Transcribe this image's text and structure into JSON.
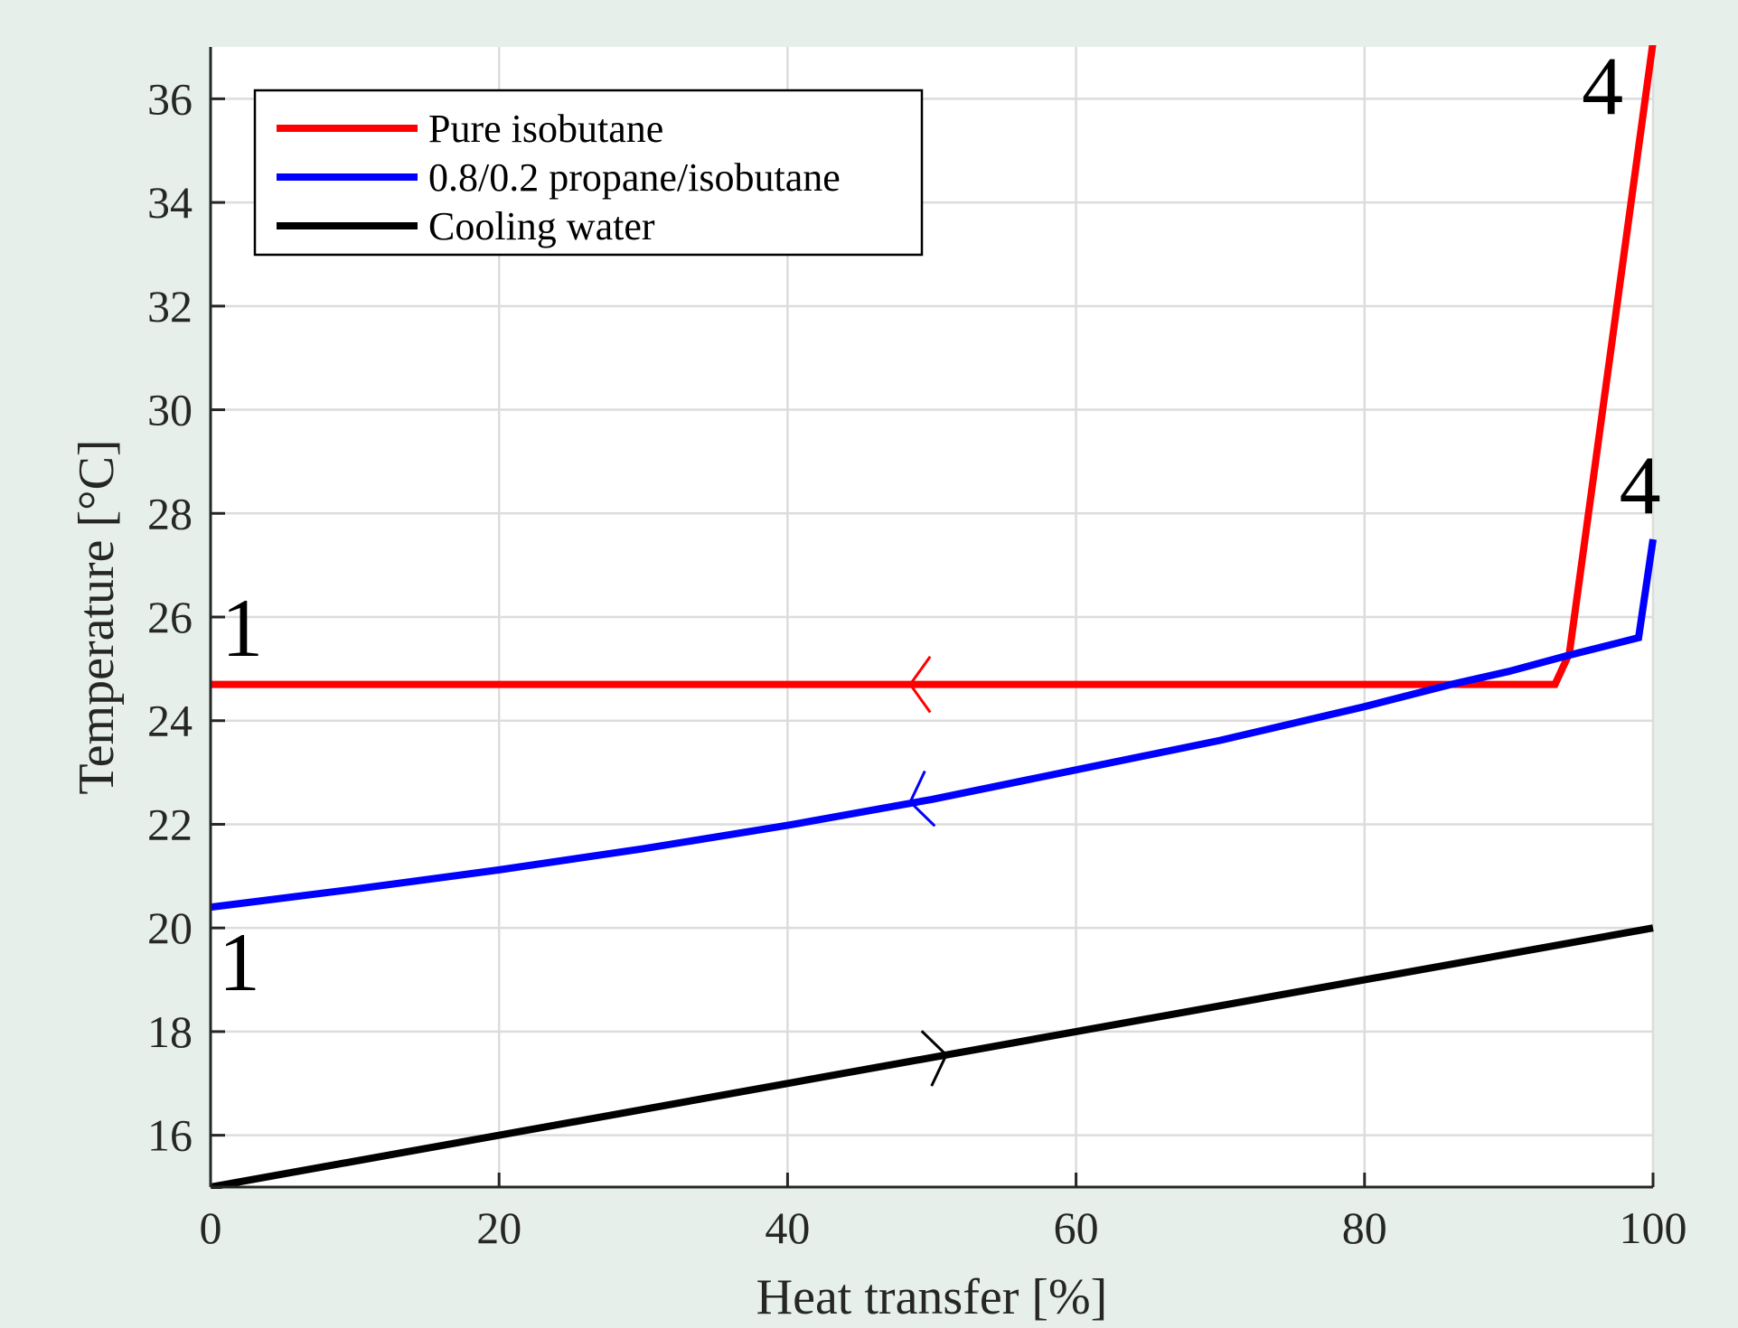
{
  "chart_data": {
    "type": "line",
    "xlabel": "Heat transfer [%]",
    "ylabel": "Temperature [°C]",
    "xlim": [
      0,
      100
    ],
    "ylim": [
      15,
      37
    ],
    "xticks": [
      0,
      20,
      40,
      60,
      80,
      100
    ],
    "yticks": [
      16,
      18,
      20,
      22,
      24,
      26,
      28,
      30,
      32,
      34,
      36
    ],
    "grid": true,
    "legend_position": "top-left",
    "series": [
      {
        "name": "Pure isobutane",
        "color": "#ff0000",
        "x": [
          0,
          93.2,
          94.2,
          100
        ],
        "y": [
          24.7,
          24.7,
          25.3,
          37.1
        ],
        "arrow": {
          "x": 48.5,
          "y": 24.7,
          "direction": "left"
        }
      },
      {
        "name": "0.8/0.2 propane/isobutane",
        "color": "#0000ff",
        "x": [
          0,
          10,
          20,
          30,
          40,
          50,
          60,
          70,
          80,
          86,
          90,
          94,
          99,
          100
        ],
        "y": [
          20.4,
          20.75,
          21.12,
          21.53,
          21.98,
          22.48,
          23.05,
          23.62,
          24.27,
          24.7,
          24.95,
          25.25,
          25.6,
          27.5
        ],
        "arrow": {
          "x": 48.5,
          "y": 22.43,
          "direction": "left"
        }
      },
      {
        "name": "Cooling water",
        "color": "#000000",
        "x": [
          0,
          100
        ],
        "y": [
          15.0,
          20.0
        ],
        "arrow": {
          "x": 51,
          "y": 17.55,
          "direction": "right"
        }
      }
    ],
    "annotations": [
      {
        "text": "1",
        "x": 2.2,
        "y": 25.25
      },
      {
        "text": "4",
        "x": 96.5,
        "y": 35.7
      },
      {
        "text": "1",
        "x": 2.0,
        "y": 18.8
      },
      {
        "text": "4",
        "x": 99.1,
        "y": 28.0
      }
    ]
  }
}
